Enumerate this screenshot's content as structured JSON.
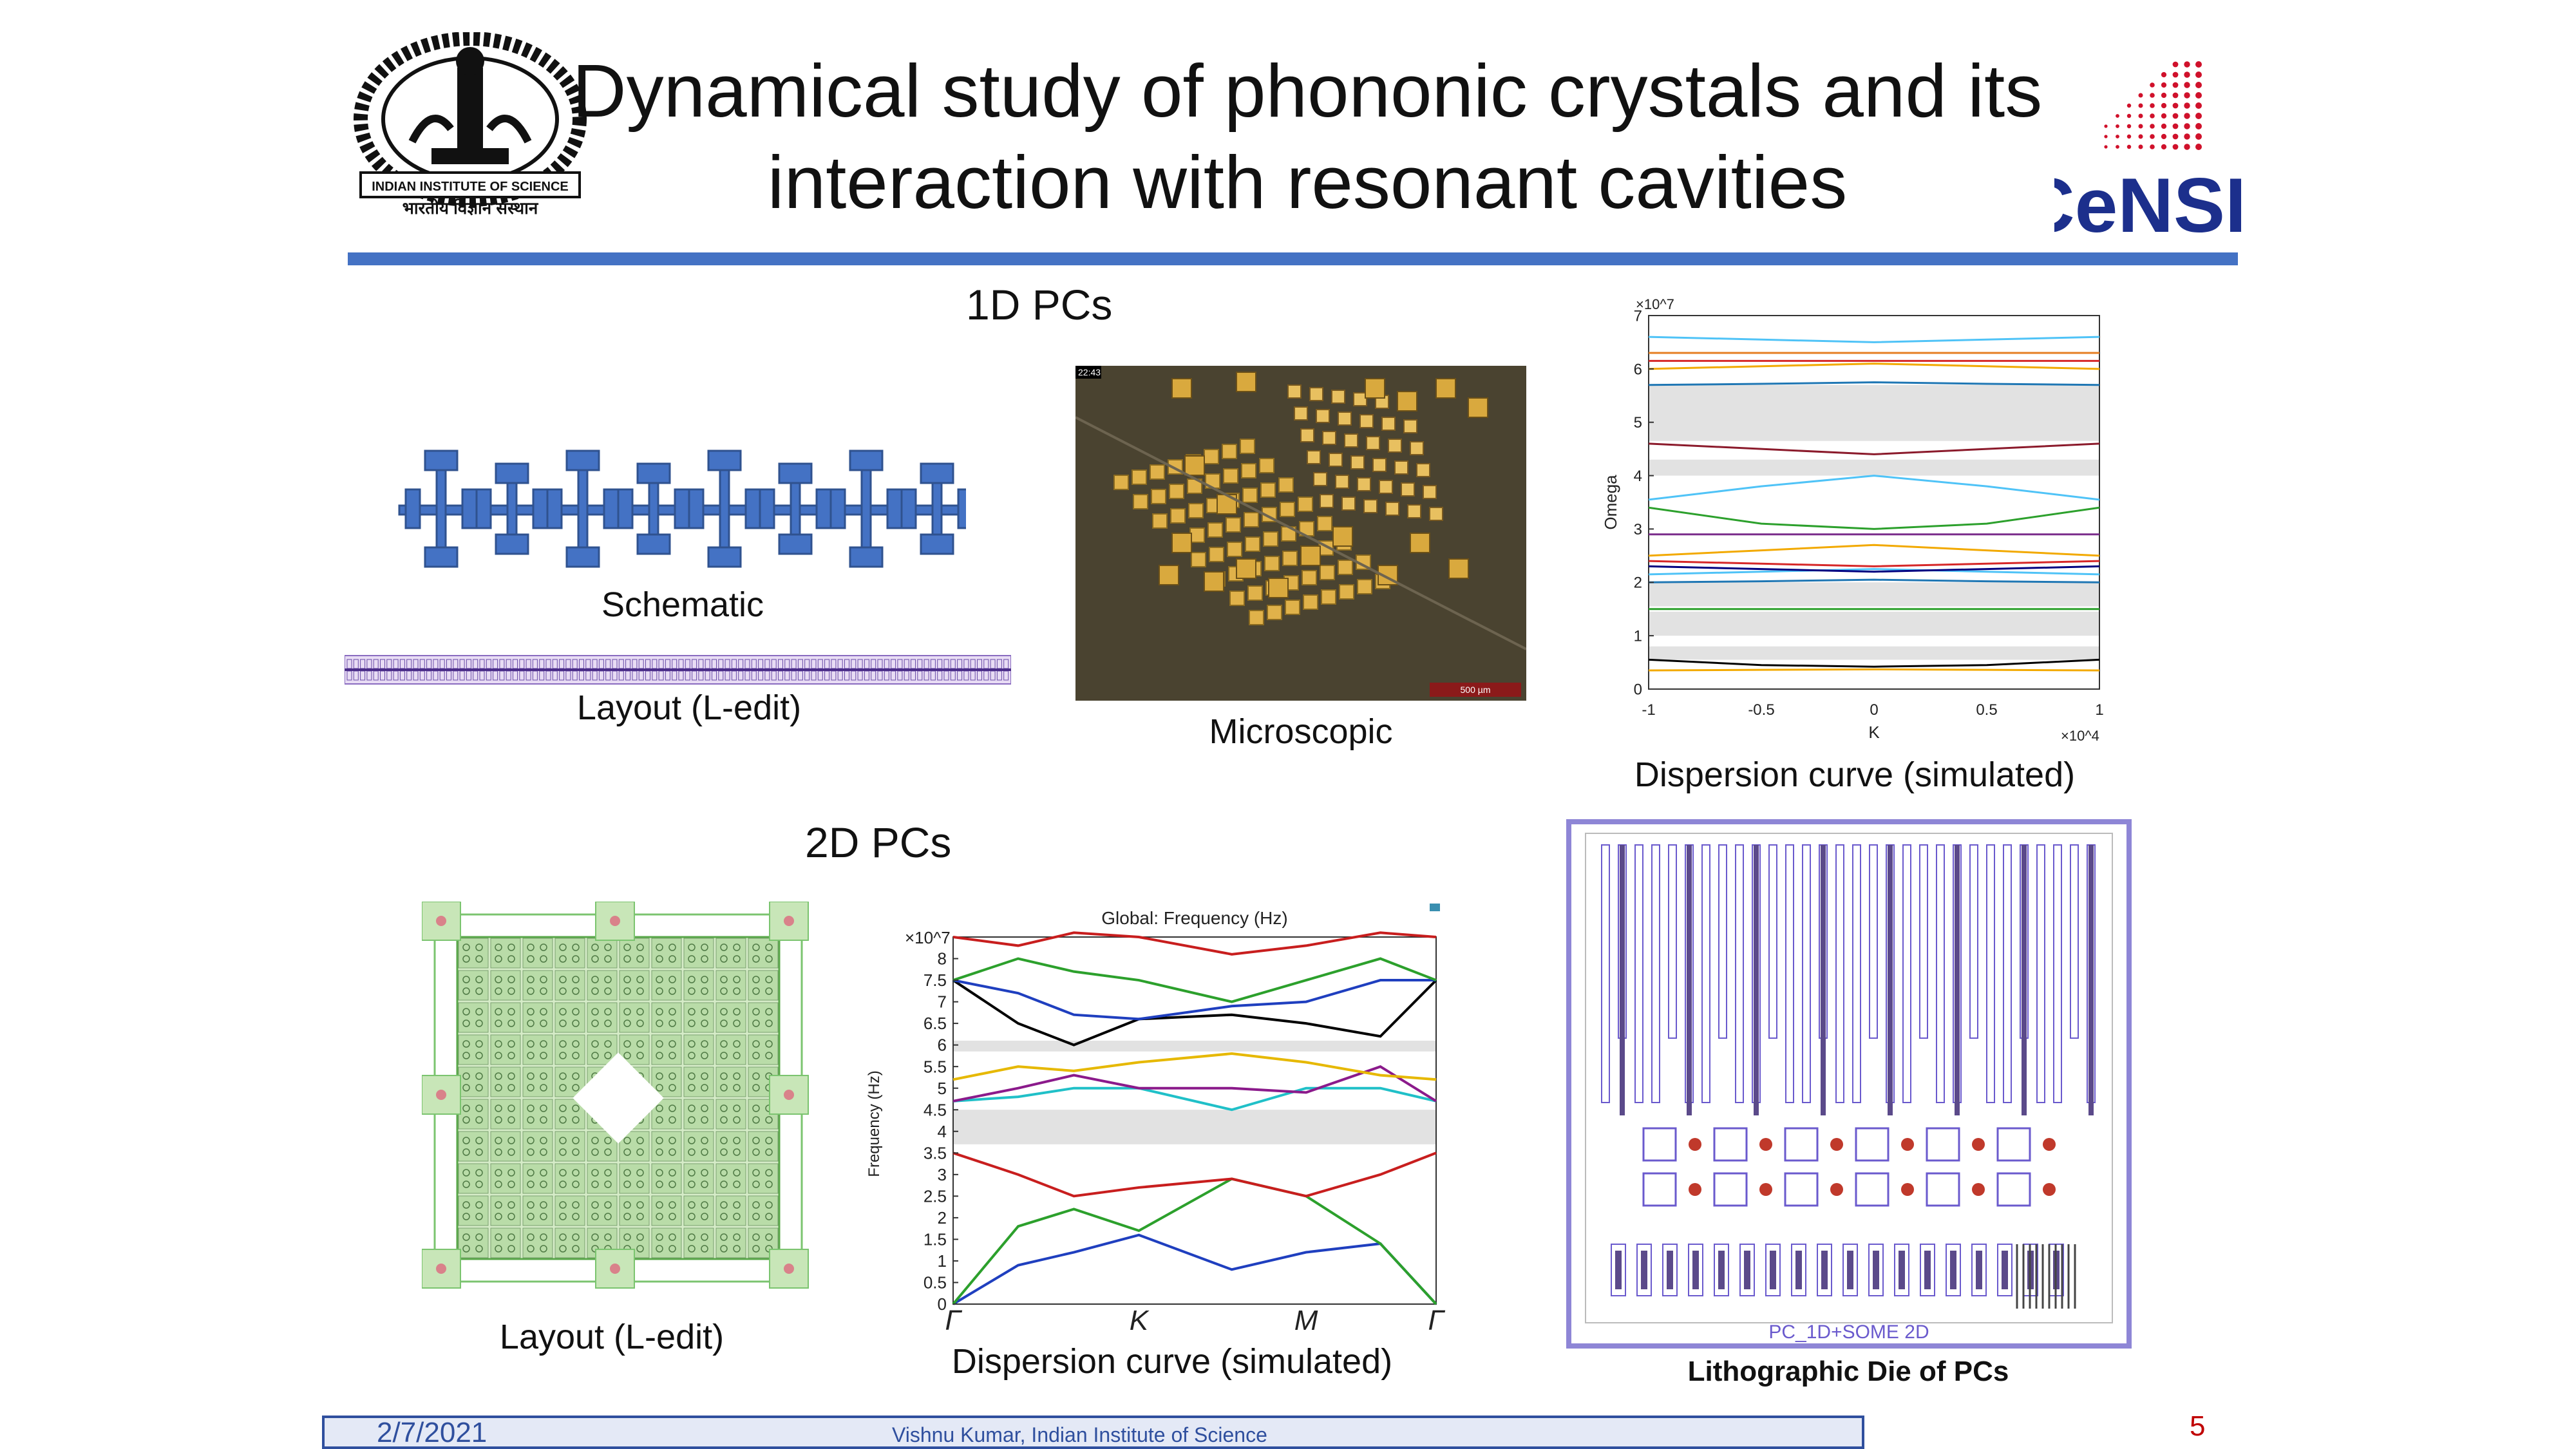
{
  "slide": {
    "title_line1": "Dynamical study of phononic crystals and its",
    "title_line2": "interaction with resonant cavities",
    "logo_left_text_top": "INDIAN INSTITUTE OF SCIENCE",
    "logo_left_text_bottom": "भारतीय विज्ञान संस्थान",
    "logo_right_text": "CeNSE",
    "accent_color": "#4472c4"
  },
  "section_1d": {
    "heading": "1D PCs",
    "schematic_caption": "Schematic",
    "layout_caption": "Layout (L-edit)",
    "microscopic_caption": "Microscopic",
    "micro_timestamp": "22:43",
    "micro_scale": "500 µm",
    "dispersion_caption": "Dispersion curve (simulated)"
  },
  "section_2d": {
    "heading": "2D PCs",
    "layout_caption": "Layout (L-edit)",
    "dispersion_caption": "Dispersion curve (simulated)",
    "die_caption": "Lithographic Die of PCs",
    "die_label": "PC_1D+SOME 2D"
  },
  "footer": {
    "date": "2/7/2021",
    "author": "Vishnu Kumar, Indian Institute of Science",
    "page_number": "5"
  },
  "chart_data": [
    {
      "type": "line",
      "title": "",
      "xlabel": "K",
      "ylabel": "Omega",
      "x_multiplier": "×10^4",
      "y_multiplier": "×10^7",
      "xlim": [
        -1,
        1
      ],
      "ylim": [
        0,
        7
      ],
      "x_ticks": [
        "-1",
        "-0.5",
        "0",
        "0.5",
        "1"
      ],
      "y_ticks": [
        "0",
        "1",
        "2",
        "3",
        "4",
        "5",
        "6",
        "7"
      ],
      "x": [
        -1,
        -0.5,
        0,
        0.5,
        1
      ],
      "band_gaps": [
        [
          0.55,
          0.8
        ],
        [
          1.0,
          1.45
        ],
        [
          1.55,
          2.0
        ],
        [
          4.0,
          4.3
        ],
        [
          4.65,
          5.7
        ]
      ],
      "series": [
        {
          "color": "#f2a900",
          "values": [
            0.35,
            0.36,
            0.37,
            0.36,
            0.35
          ]
        },
        {
          "color": "#000000",
          "values": [
            0.55,
            0.45,
            0.42,
            0.45,
            0.55
          ]
        },
        {
          "color": "#2ca02c",
          "values": [
            1.5,
            1.5,
            1.5,
            1.5,
            1.5
          ]
        },
        {
          "color": "#1f77b4",
          "values": [
            2.0,
            2.02,
            2.05,
            2.02,
            2.0
          ]
        },
        {
          "color": "#4fc3f7",
          "values": [
            2.15,
            2.2,
            2.25,
            2.2,
            2.15
          ]
        },
        {
          "color": "#000080",
          "values": [
            2.3,
            2.25,
            2.2,
            2.25,
            2.3
          ]
        },
        {
          "color": "#d62728",
          "values": [
            2.4,
            2.35,
            2.3,
            2.35,
            2.4
          ]
        },
        {
          "color": "#f2a900",
          "values": [
            2.5,
            2.6,
            2.7,
            2.6,
            2.5
          ]
        },
        {
          "color": "#7b2d8b",
          "values": [
            2.9,
            2.9,
            2.9,
            2.9,
            2.9
          ]
        },
        {
          "color": "#2ca02c",
          "values": [
            3.4,
            3.1,
            3.0,
            3.1,
            3.4
          ]
        },
        {
          "color": "#4fc3f7",
          "values": [
            3.55,
            3.8,
            4.0,
            3.8,
            3.55
          ]
        },
        {
          "color": "#8b1a2b",
          "values": [
            4.6,
            4.5,
            4.4,
            4.5,
            4.6
          ]
        },
        {
          "color": "#1f77b4",
          "values": [
            5.7,
            5.72,
            5.75,
            5.72,
            5.7
          ]
        },
        {
          "color": "#f2a900",
          "values": [
            6.0,
            6.05,
            6.1,
            6.05,
            6.0
          ]
        },
        {
          "color": "#d62728",
          "values": [
            6.15,
            6.15,
            6.15,
            6.15,
            6.15
          ]
        },
        {
          "color": "#e67e22",
          "values": [
            6.3,
            6.3,
            6.3,
            6.3,
            6.3
          ]
        },
        {
          "color": "#4fc3f7",
          "values": [
            6.6,
            6.55,
            6.5,
            6.55,
            6.6
          ]
        }
      ]
    },
    {
      "type": "line",
      "title": "Global: Frequency (Hz)",
      "xlabel": "",
      "ylabel": "Frequency (Hz)",
      "y_multiplier": "×10^7",
      "ylim": [
        0,
        8.5
      ],
      "x_ticks": [
        "Γ",
        "K",
        "M",
        "Γ"
      ],
      "y_ticks": [
        "0",
        "0.5",
        "1",
        "1.5",
        "2",
        "2.5",
        "3",
        "3.5",
        "4",
        "4.5",
        "5",
        "5.5",
        "6",
        "6.5",
        "7",
        "7.5",
        "8"
      ],
      "x": [
        0,
        0.35,
        0.65,
        1.0,
        1.5,
        1.9,
        2.3,
        2.6
      ],
      "band_gaps": [
        [
          3.7,
          4.5
        ],
        [
          5.85,
          6.1
        ]
      ],
      "series": [
        {
          "color": "#1f3fbf",
          "values": [
            0,
            0.9,
            1.2,
            1.6,
            0.8,
            1.2,
            1.4,
            0
          ]
        },
        {
          "color": "#2ca02c",
          "values": [
            0,
            1.8,
            2.2,
            1.7,
            2.9,
            2.5,
            1.4,
            0
          ]
        },
        {
          "color": "#c81e1e",
          "values": [
            3.5,
            3.0,
            2.5,
            2.7,
            2.9,
            2.5,
            3.0,
            3.5
          ]
        },
        {
          "color": "#20c0c8",
          "values": [
            4.7,
            4.8,
            5.0,
            5.0,
            4.5,
            5.0,
            5.0,
            4.7
          ]
        },
        {
          "color": "#8b1a8b",
          "values": [
            4.7,
            5.0,
            5.3,
            5.0,
            5.0,
            4.9,
            5.5,
            4.7
          ]
        },
        {
          "color": "#e6b800",
          "values": [
            5.2,
            5.5,
            5.4,
            5.6,
            5.8,
            5.6,
            5.3,
            5.2
          ]
        },
        {
          "color": "#000000",
          "values": [
            7.5,
            6.5,
            6.0,
            6.6,
            6.7,
            6.5,
            6.2,
            7.5
          ]
        },
        {
          "color": "#1f3fbf",
          "values": [
            7.5,
            7.2,
            6.7,
            6.6,
            6.9,
            7.0,
            7.5,
            7.5
          ]
        },
        {
          "color": "#2ca02c",
          "values": [
            7.5,
            8.0,
            7.7,
            7.5,
            7.0,
            7.5,
            8.0,
            7.5
          ]
        },
        {
          "color": "#c81e1e",
          "values": [
            8.5,
            8.3,
            8.6,
            8.5,
            8.1,
            8.3,
            8.6,
            8.5
          ]
        }
      ]
    }
  ]
}
